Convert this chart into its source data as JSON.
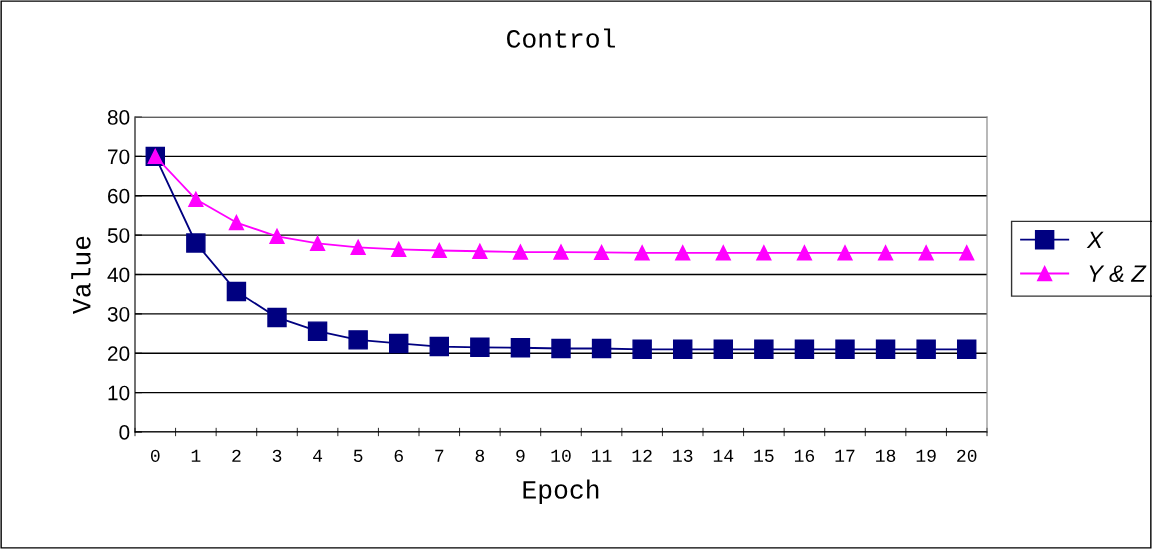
{
  "chart_data": {
    "type": "line",
    "title": "Control",
    "xlabel": "Epoch",
    "ylabel": "Value",
    "categories": [
      "0",
      "1",
      "2",
      "3",
      "4",
      "5",
      "6",
      "7",
      "8",
      "9",
      "10",
      "11",
      "12",
      "13",
      "14",
      "15",
      "16",
      "17",
      "18",
      "19",
      "20"
    ],
    "series": [
      {
        "name": "X",
        "color": "#000080",
        "marker": "square",
        "values": [
          70,
          48,
          35.7,
          29.1,
          25.6,
          23.4,
          22.5,
          21.7,
          21.5,
          21.4,
          21.2,
          21.2,
          21,
          21,
          21,
          21,
          21,
          21,
          21,
          21,
          21
        ]
      },
      {
        "name": "Y & Z",
        "color": "#ff00ff",
        "marker": "triangle",
        "values": [
          70,
          59.1,
          53.2,
          49.7,
          47.9,
          46.9,
          46.4,
          46.1,
          45.9,
          45.7,
          45.7,
          45.6,
          45.5,
          45.5,
          45.5,
          45.5,
          45.5,
          45.5,
          45.5,
          45.5,
          45.5
        ]
      }
    ],
    "ylim": [
      0,
      80
    ],
    "yticks": [
      0,
      10,
      20,
      30,
      40,
      50,
      60,
      70,
      80
    ],
    "grid": "y",
    "legend": "right",
    "line_style": "solid"
  }
}
